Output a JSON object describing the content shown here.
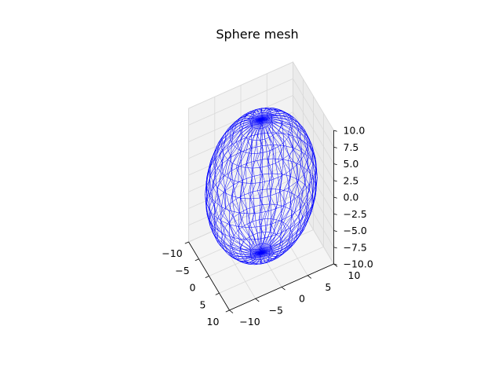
{
  "chart_data": {
    "type": "wireframe",
    "title": "Sphere mesh",
    "shape": "sphere",
    "radius": 10,
    "center": [
      0,
      0,
      0
    ],
    "mesh_color": "#0000ff",
    "xlim": [
      -10,
      10
    ],
    "ylim": [
      -10,
      10
    ],
    "zlim": [
      -10,
      10
    ],
    "x_ticks": [
      "−10",
      "−5",
      "0",
      "5",
      "10"
    ],
    "y_ticks": [
      "−10",
      "−5",
      "0",
      "5",
      "10"
    ],
    "z_ticks": [
      "−10.0",
      "−7.5",
      "−5.0",
      "−2.5",
      "0.0",
      "2.5",
      "5.0",
      "7.5",
      "10.0"
    ],
    "grid": true,
    "pane_color": "#f2f2f2"
  }
}
